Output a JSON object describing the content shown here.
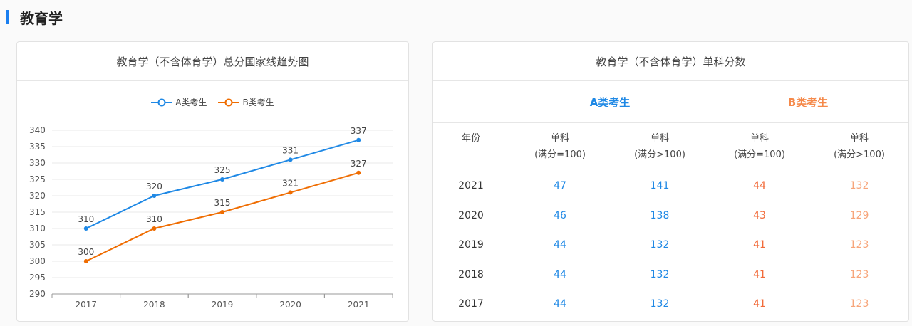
{
  "section": {
    "title": "教育学"
  },
  "colors": {
    "accent": "#1a7ff0",
    "series_a": "#1e88e5",
    "series_b": "#ef6c00"
  },
  "chart_data": {
    "type": "line",
    "title": "教育学（不含体育学）总分国家线趋势图",
    "categories": [
      "2017",
      "2018",
      "2019",
      "2020",
      "2021"
    ],
    "series": [
      {
        "name": "A类考生",
        "values": [
          310,
          320,
          325,
          331,
          337
        ]
      },
      {
        "name": "B类考生",
        "values": [
          300,
          310,
          315,
          321,
          327
        ]
      }
    ],
    "yticks": [
      "290",
      "295",
      "300",
      "305",
      "310",
      "315",
      "320",
      "325",
      "330",
      "335",
      "340"
    ],
    "ylim": [
      290,
      340
    ],
    "grid": true,
    "legend": "top-center",
    "data_labels": true
  },
  "table": {
    "title": "教育学（不含体育学）单科分数",
    "group_a": "A类考生",
    "group_b": "B类考生",
    "year_header": "年份",
    "col_headers": [
      {
        "line1": "单科",
        "line2": "(满分=100)"
      },
      {
        "line1": "单科",
        "line2": "(满分>100)"
      },
      {
        "line1": "单科",
        "line2": "(满分=100)"
      },
      {
        "line1": "单科",
        "line2": "(满分>100)"
      }
    ],
    "rows": [
      {
        "year": "2021",
        "a100": "47",
        "a_over": "141",
        "b100": "44",
        "b_over": "132"
      },
      {
        "year": "2020",
        "a100": "46",
        "a_over": "138",
        "b100": "43",
        "b_over": "129"
      },
      {
        "year": "2019",
        "a100": "44",
        "a_over": "132",
        "b100": "41",
        "b_over": "123"
      },
      {
        "year": "2018",
        "a100": "44",
        "a_over": "132",
        "b100": "41",
        "b_over": "123"
      },
      {
        "year": "2017",
        "a100": "44",
        "a_over": "132",
        "b100": "41",
        "b_over": "123"
      }
    ]
  }
}
